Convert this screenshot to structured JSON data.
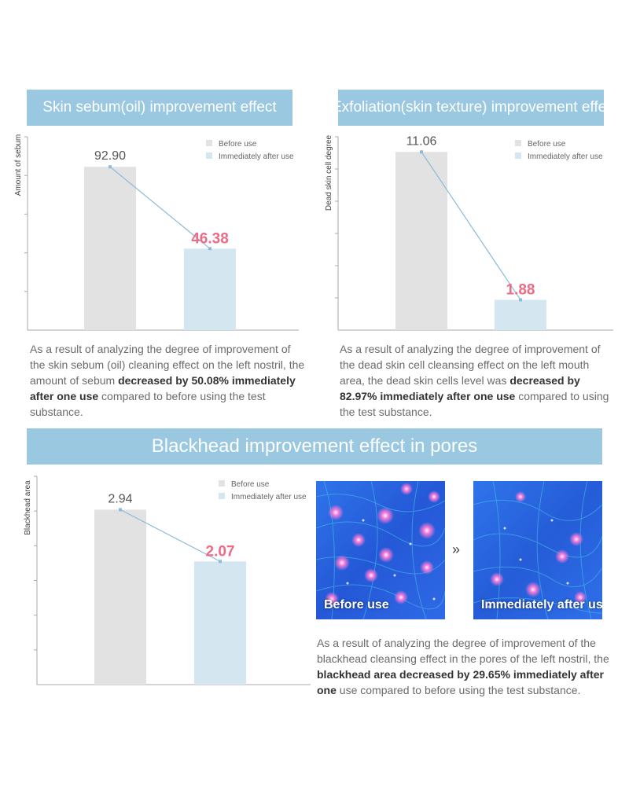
{
  "colors": {
    "banner": "#99c8e0",
    "bar_before": "#e2e2e2",
    "bar_after": "#d4e6f0",
    "line": "#8cbbdb",
    "value_after": "#ec6b85",
    "photo_bg": "#2a66e0"
  },
  "sections": [
    {
      "banner": "Skin sebum(oil) improvement effect",
      "description": {
        "pre": "As a result of analyzing the degree of improvement of the skin sebum (oil) cleaning effect on the left nostril, the amount of sebum ",
        "bold": "decreased by 50.08% immediately after one use",
        "post": " compared to before using the test substance."
      }
    },
    {
      "banner": "Exfoliation(skin texture) improvement effect",
      "description": {
        "pre": "As a result of analyzing the degree of improvement of the dead skin cell cleansing effect on the left mouth area, the dead skin cells level was ",
        "bold": "decreased by 82.97% immediately after one use",
        "post": " compared to using the test substance."
      }
    },
    {
      "banner": "Blackhead improvement effect in pores",
      "description": {
        "pre": "As a result of analyzing the degree of improvement of the blackhead cleansing effect in the pores of the left nostril, the ",
        "bold": "blackhead area decreased by 29.65% immediately after one",
        "post": " use compared to before using the test substance."
      }
    }
  ],
  "legend": {
    "before": "Before use",
    "after": "Immediately after use"
  },
  "chart_data": [
    {
      "type": "bar",
      "ylabel": "Amount of sebum",
      "categories": [
        "Before use",
        "Immediately after use"
      ],
      "values": [
        92.9,
        46.38
      ],
      "value_labels": [
        "92.90",
        "46.38"
      ],
      "ylim": [
        0,
        110
      ],
      "legend": "top-right",
      "grid": false
    },
    {
      "type": "bar",
      "ylabel": "Dead skin cell degree",
      "categories": [
        "Before use",
        "Immediately after use"
      ],
      "values": [
        11.06,
        1.88
      ],
      "value_labels": [
        "11.06",
        "1.88"
      ],
      "ylim": [
        0,
        12
      ],
      "legend": "top-right",
      "grid": false
    },
    {
      "type": "bar",
      "ylabel": "Blackhead area",
      "categories": [
        "Before use",
        "Immediately after use"
      ],
      "values": [
        2.94,
        2.07
      ],
      "value_labels": [
        "2.94",
        "2.07"
      ],
      "ylim": [
        0,
        3.5
      ],
      "legend": "top-right",
      "grid": false
    }
  ],
  "photos": {
    "before_label": "Before use",
    "after_label": "Immediately after use",
    "arrow": "»"
  }
}
